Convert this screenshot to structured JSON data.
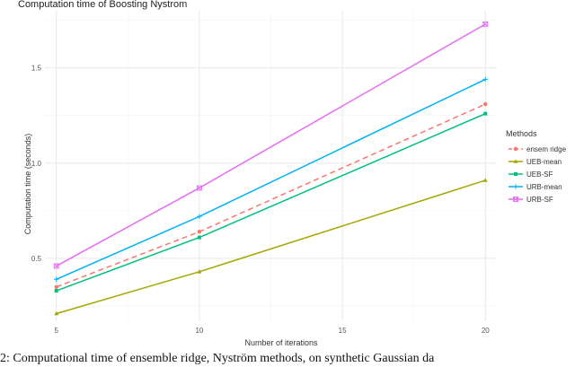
{
  "caption": "2: Computational time of ensemble ridge, Nyström methods, on synthetic Gaussian da",
  "colors": {
    "ensem ridge": "#f8766d",
    "UEB-mean": "#a3a500",
    "UEB-SF": "#00bf7d",
    "URB-mean": "#00b0f6",
    "URB-SF": "#e76bf3",
    "grid_major": "#e5e5e5",
    "grid_minor": "#f2f2f2"
  },
  "chart_data": {
    "type": "line",
    "title": "Computation time of Boosting Nystrom",
    "xlabel": "Number of iterations",
    "ylabel": "Computation time (seconds)",
    "xlim": [
      4.6,
      20.4
    ],
    "ylim": [
      0.17,
      1.8
    ],
    "x_ticks": [
      5,
      10,
      15,
      20
    ],
    "y_ticks": [
      0.5,
      1.0,
      1.5
    ],
    "y_tick_labels": [
      "0.5",
      "1.0",
      "1.5"
    ],
    "grid": true,
    "legend_title": "Methods",
    "legend_position": "right",
    "x": [
      5,
      10,
      20
    ],
    "series": [
      {
        "name": "ensem ridge",
        "values": [
          0.35,
          0.64,
          1.31
        ],
        "dashed": true,
        "marker": "dot"
      },
      {
        "name": "UEB-mean",
        "values": [
          0.21,
          0.43,
          0.91
        ],
        "dashed": false,
        "marker": "triangle"
      },
      {
        "name": "UEB-SF",
        "values": [
          0.33,
          0.61,
          1.26
        ],
        "dashed": false,
        "marker": "square"
      },
      {
        "name": "URB-mean",
        "values": [
          0.39,
          0.72,
          1.44
        ],
        "dashed": false,
        "marker": "plus"
      },
      {
        "name": "URB-SF",
        "values": [
          0.46,
          0.87,
          1.73
        ],
        "dashed": false,
        "marker": "boxx"
      }
    ]
  }
}
